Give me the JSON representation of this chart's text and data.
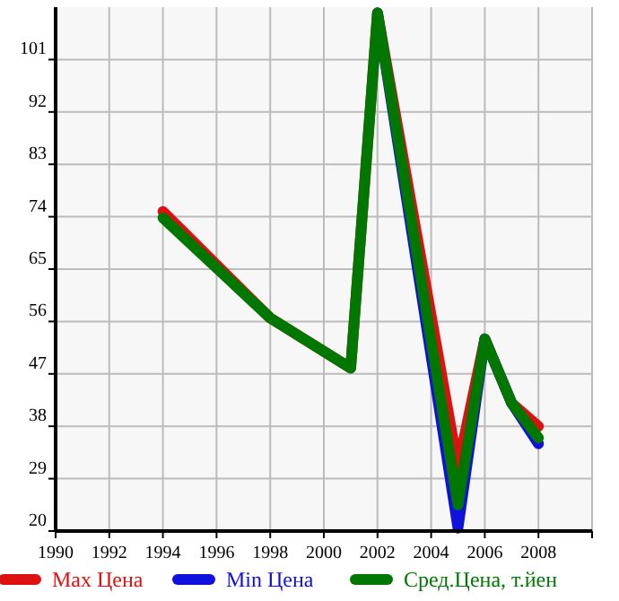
{
  "chart_data": {
    "type": "line",
    "x": [
      1994,
      1998,
      2001,
      2002,
      2005,
      2006,
      2007,
      2008
    ],
    "series": [
      {
        "name": "Max Цена",
        "color": "#dd1111",
        "values": [
          74.9,
          56.6,
          48,
          109,
          31,
          53,
          42,
          38
        ]
      },
      {
        "name": "Min Цена",
        "color": "#1111dd",
        "values": [
          null,
          null,
          null,
          109,
          20.5,
          53,
          42,
          35
        ]
      },
      {
        "name": "Сред.Цена, т.йен",
        "color": "#007700",
        "values": [
          73.8,
          56.6,
          48,
          109,
          24.5,
          53,
          42,
          36
        ]
      }
    ],
    "xlim": [
      1990,
      2010
    ],
    "xticks": [
      1990,
      1992,
      1994,
      1996,
      1998,
      2000,
      2002,
      2004,
      2006,
      2008,
      {
        "value": 2010,
        "label": null
      }
    ],
    "ylim": [
      20,
      110
    ],
    "yticks": [
      20,
      29,
      38,
      47,
      56,
      65,
      74,
      83,
      92,
      101
    ],
    "grid": true,
    "legend": "bottom",
    "marker": "none",
    "line_style": "solid"
  }
}
